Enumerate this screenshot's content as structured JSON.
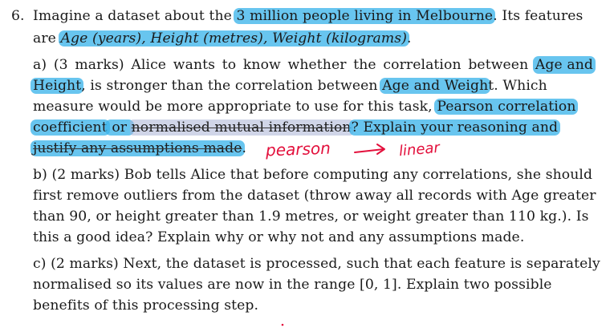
{
  "question": {
    "number": "6.",
    "intro": {
      "t1": "Imagine a dataset about the ",
      "hl1": "3 million people living in Melbourne",
      "t2": ". Its features",
      "t3": "are ",
      "features": "Age (years), Height (metres), Weight (kilograms)",
      "t4": "."
    },
    "part_a": {
      "line1": [
        "a)",
        "(3",
        "marks)",
        "Alice",
        "wants",
        "to",
        "know",
        "whether",
        "the",
        "correlation",
        "between"
      ],
      "line1_hl": "Age and",
      "line2_hl": "Height",
      "line2_a": ", is stronger than the correlation between ",
      "line2_hl2": "Age and Weigh",
      "line2_b": "t.  Which",
      "line3_a": "measure would be more appropriate to use for this task, ",
      "line3_hl": "Pearson correlation",
      "line4_hl": "coefficient",
      "line4_or": " or ",
      "line4_grey": "normalised mutual information",
      "line4_b": "?  Explain your reasoning and",
      "line5_hl": "justify any assumptions made",
      "line5_b": "."
    },
    "part_b": {
      "line1": "b) (2 marks) Bob tells Alice that before computing any correlations, she should",
      "line2": "first remove outliers from the dataset (throw away all records with Age greater",
      "line3": "than 90, or height greater than 1.9 metres, or weight greater than 110 kg.).  Is",
      "line4": "this a good idea? Explain why or why not and any assumptions made."
    },
    "part_c": {
      "line1": "c) (2 marks) Next, the dataset is processed, such that each feature is separately",
      "line2": "normalised so its values are now in the range [0, 1].  Explain two possible",
      "line3": "benefits of this processing step."
    }
  },
  "annotations": {
    "handwriting_1": "pearson",
    "handwriting_2": "linear",
    "ink_color": "#e3103c",
    "highlight_color": "#3eb5eb",
    "highlight_secondary_color": "#aab2d6"
  }
}
